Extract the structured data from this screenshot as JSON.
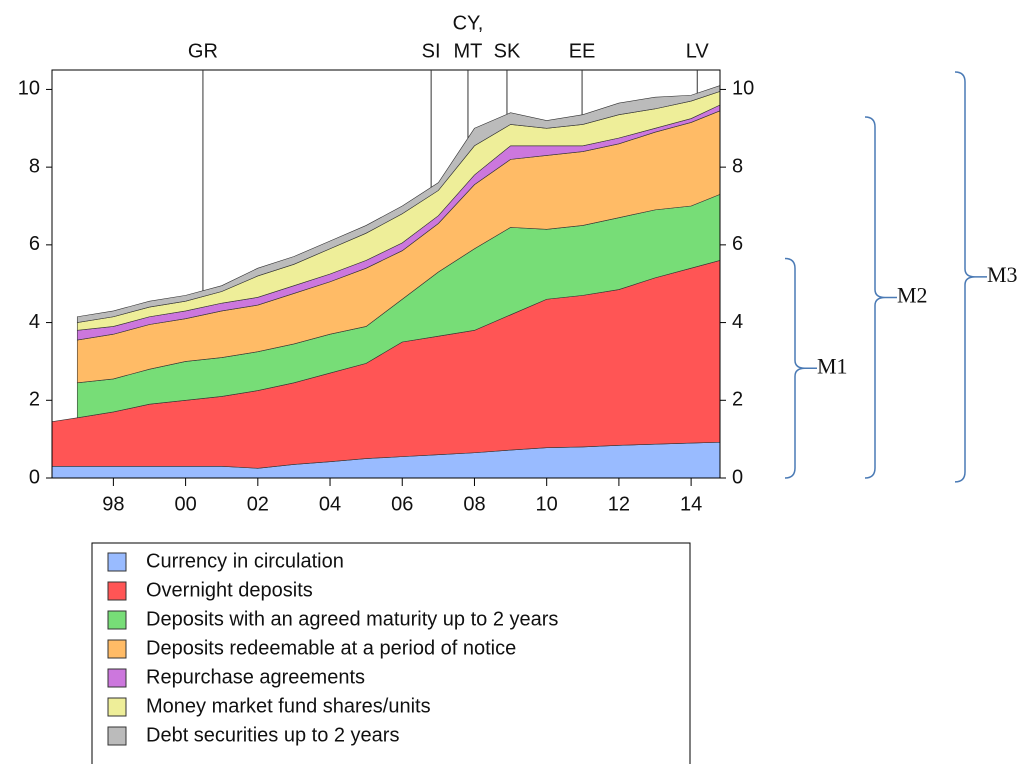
{
  "chart_data": {
    "type": "stacked-area",
    "x": [
      1996.3,
      1997,
      1998,
      1999,
      2000,
      2001,
      2002,
      2003,
      2004,
      2005,
      2006,
      2007,
      2008,
      2009,
      2010,
      2011,
      2012,
      2013,
      2014,
      2014.8
    ],
    "series": [
      {
        "name": "Currency in circulation",
        "color": "#99bbff",
        "values": [
          0.3,
          0.3,
          0.3,
          0.3,
          0.3,
          0.3,
          0.25,
          0.35,
          0.42,
          0.5,
          0.55,
          0.6,
          0.65,
          0.72,
          0.78,
          0.8,
          0.84,
          0.87,
          0.9,
          0.92
        ]
      },
      {
        "name": "Overnight deposits",
        "color": "#ff5555",
        "values": [
          1.15,
          1.25,
          1.4,
          1.6,
          1.7,
          1.8,
          2.0,
          2.1,
          2.28,
          2.45,
          2.95,
          3.05,
          3.15,
          3.48,
          3.82,
          3.9,
          4.01,
          4.28,
          4.5,
          4.68
        ]
      },
      {
        "name": "Deposits with an agreed maturity up to 2 years",
        "color": "#77dd77",
        "values": [
          null,
          0.9,
          0.85,
          0.9,
          1.0,
          1.0,
          1.0,
          1.0,
          1.0,
          0.95,
          1.1,
          1.65,
          2.1,
          2.25,
          1.8,
          1.8,
          1.85,
          1.75,
          1.6,
          1.7
        ]
      },
      {
        "name": "Deposits redeemable at a period of notice",
        "color": "#ffbb66",
        "values": [
          null,
          1.1,
          1.15,
          1.15,
          1.1,
          1.2,
          1.2,
          1.3,
          1.35,
          1.5,
          1.25,
          1.25,
          1.65,
          1.75,
          1.9,
          1.9,
          1.9,
          2.0,
          2.15,
          2.15
        ]
      },
      {
        "name": "Repurchase agreements",
        "color": "#cc77dd",
        "values": [
          null,
          0.25,
          0.2,
          0.2,
          0.2,
          0.2,
          0.2,
          0.2,
          0.2,
          0.2,
          0.2,
          0.2,
          0.25,
          0.35,
          0.25,
          0.15,
          0.15,
          0.1,
          0.1,
          0.15
        ]
      },
      {
        "name": "Money market fund shares/units",
        "color": "#eeee99",
        "values": [
          null,
          0.2,
          0.25,
          0.25,
          0.25,
          0.3,
          0.55,
          0.55,
          0.65,
          0.7,
          0.75,
          0.65,
          0.75,
          0.55,
          0.45,
          0.55,
          0.6,
          0.5,
          0.45,
          0.35
        ]
      },
      {
        "name": "Debt securities up to 2 years",
        "color": "#bbbbbb",
        "values": [
          null,
          0.15,
          0.15,
          0.15,
          0.15,
          0.15,
          0.2,
          0.2,
          0.2,
          0.2,
          0.2,
          0.2,
          0.45,
          0.3,
          0.2,
          0.25,
          0.3,
          0.3,
          0.15,
          0.15
        ]
      }
    ],
    "xlim": [
      1996.3,
      2014.8
    ],
    "xticks": [
      {
        "value": 1998,
        "label": "98"
      },
      {
        "value": 2000,
        "label": "00"
      },
      {
        "value": 2002,
        "label": "02"
      },
      {
        "value": 2004,
        "label": "04"
      },
      {
        "value": 2006,
        "label": "06"
      },
      {
        "value": 2008,
        "label": "08"
      },
      {
        "value": 2010,
        "label": "10"
      },
      {
        "value": 2012,
        "label": "12"
      },
      {
        "value": 2014,
        "label": "14"
      }
    ],
    "ylim": [
      0,
      10.5
    ],
    "yticks": [
      0,
      2,
      4,
      6,
      8,
      10
    ],
    "y2lim": [
      0,
      10.5
    ],
    "y2ticks": [
      0,
      2,
      4,
      6,
      8,
      10
    ],
    "annotations": [
      {
        "x": 2000.48,
        "label": "GR"
      },
      {
        "x": 2006.8,
        "label": "SI"
      },
      {
        "x": 2007.82,
        "label": [
          "CY,",
          "MT"
        ]
      },
      {
        "x": 2008.9,
        "label": "SK"
      },
      {
        "x": 2010.98,
        "label": "EE"
      },
      {
        "x": 2014.17,
        "label": "LV"
      }
    ],
    "brackets": [
      {
        "label": "M1",
        "range": [
          0,
          5.65
        ]
      },
      {
        "label": "M2",
        "range": [
          0,
          9.29
        ]
      },
      {
        "label": "M3",
        "range": [
          -0.1,
          10.45
        ]
      }
    ]
  }
}
